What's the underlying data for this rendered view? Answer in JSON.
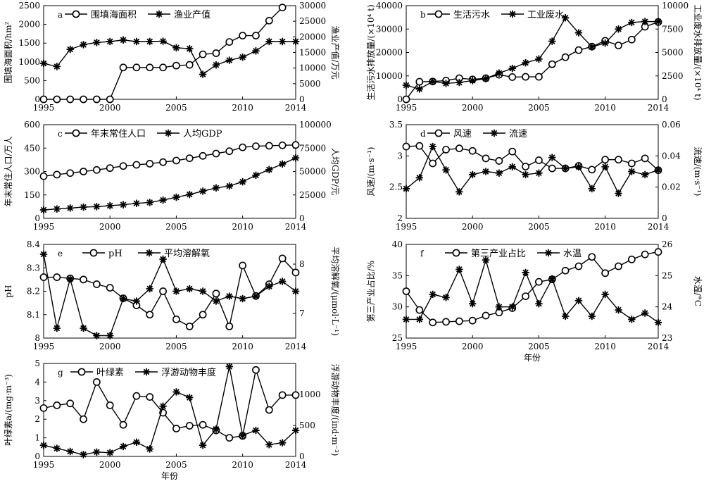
{
  "chart_data": [
    {
      "panel": "a",
      "type": "line",
      "x": [
        1995,
        1996,
        1997,
        1998,
        1999,
        2000,
        2001,
        2002,
        2003,
        2004,
        2005,
        2006,
        2007,
        2008,
        2009,
        2010,
        2011,
        2012,
        2013,
        2014
      ],
      "xlim": [
        1995,
        2014
      ],
      "xticks": [
        1995,
        2000,
        2005,
        2010,
        2014
      ],
      "ylabel": "围填海面积/hm²",
      "ylim": [
        0,
        2500
      ],
      "yticks": [
        0,
        500,
        1000,
        1500,
        2000,
        2500
      ],
      "y2label": "渔业产值/万元",
      "y2lim": [
        0,
        30000
      ],
      "y2ticks": [
        0,
        5000,
        10000,
        15000,
        20000,
        25000,
        30000
      ],
      "legend_position": "top-left",
      "series": [
        {
          "name": "围填海面积",
          "marker": "circle",
          "axis": "left",
          "values": [
            0,
            0,
            0,
            0,
            0,
            0,
            850,
            850,
            850,
            850,
            900,
            920,
            1200,
            1230,
            1530,
            1700,
            1700,
            2100,
            2450,
            null
          ]
        },
        {
          "name": "渔业产值",
          "marker": "star",
          "axis": "right",
          "values": [
            11500,
            10500,
            16000,
            17500,
            18200,
            18500,
            19000,
            18500,
            18500,
            18600,
            16500,
            16200,
            8000,
            11000,
            12500,
            13500,
            15500,
            18500,
            18500,
            18500
          ]
        }
      ]
    },
    {
      "panel": "b",
      "type": "line",
      "x": [
        1995,
        1996,
        1997,
        1998,
        1999,
        2000,
        2001,
        2002,
        2003,
        2004,
        2005,
        2006,
        2007,
        2008,
        2009,
        2010,
        2011,
        2012,
        2013,
        2014
      ],
      "xlim": [
        1995,
        2014
      ],
      "xticks": [
        1995,
        2000,
        2005,
        2010,
        2014
      ],
      "ylabel": "生活污水排放量/(×10⁴ t)",
      "ylim": [
        0,
        40000
      ],
      "yticks": [
        0,
        10000,
        20000,
        30000,
        40000
      ],
      "y2label": "工业废水排放量/(×10⁴ t)",
      "y2lim": [
        0,
        10000
      ],
      "y2ticks": [
        0,
        2500,
        5000,
        7500,
        10000
      ],
      "legend_position": "top-left",
      "series": [
        {
          "name": "生活污水",
          "marker": "circle",
          "axis": "left",
          "values": [
            0,
            7500,
            7600,
            8000,
            9000,
            8500,
            9000,
            10500,
            9500,
            9600,
            9600,
            15000,
            18000,
            21000,
            22500,
            25000,
            23000,
            25500,
            31000,
            33000
          ]
        },
        {
          "name": "工业废水",
          "marker": "star",
          "axis": "right",
          "values": [
            1500,
            1100,
            1900,
            1700,
            1800,
            2000,
            2200,
            2800,
            3300,
            3900,
            4300,
            6200,
            8700,
            7100,
            5600,
            6000,
            7500,
            8200,
            8300,
            8300
          ]
        }
      ]
    },
    {
      "panel": "c",
      "type": "line",
      "x": [
        1995,
        1996,
        1997,
        1998,
        1999,
        2000,
        2001,
        2002,
        2003,
        2004,
        2005,
        2006,
        2007,
        2008,
        2009,
        2010,
        2011,
        2012,
        2013,
        2014
      ],
      "xlim": [
        1995,
        2014
      ],
      "xticks": [
        1995,
        2000,
        2005,
        2010,
        2014
      ],
      "ylabel": "年末常住人口/万人",
      "ylim": [
        0,
        600
      ],
      "yticks": [
        0,
        150,
        300,
        450,
        600
      ],
      "y2label": "人均GDP/元",
      "y2lim": [
        0,
        100000
      ],
      "y2ticks": [
        0,
        25000,
        50000,
        75000,
        100000
      ],
      "legend_position": "top-left",
      "series": [
        {
          "name": "年末常住人口",
          "marker": "circle",
          "axis": "left",
          "values": [
            270,
            280,
            290,
            300,
            310,
            322,
            335,
            343,
            350,
            360,
            370,
            385,
            400,
            415,
            430,
            455,
            462,
            465,
            468,
            470
          ]
        },
        {
          "name": "人均GDP",
          "marker": "star",
          "axis": "right",
          "values": [
            9000,
            10000,
            11000,
            12000,
            12500,
            13500,
            14500,
            16000,
            17000,
            19500,
            22500,
            25500,
            29000,
            32500,
            34500,
            39000,
            46000,
            52000,
            58000,
            64500
          ]
        }
      ]
    },
    {
      "panel": "d",
      "type": "line",
      "x": [
        1995,
        1996,
        1997,
        1998,
        1999,
        2000,
        2001,
        2002,
        2003,
        2004,
        2005,
        2006,
        2007,
        2008,
        2009,
        2010,
        2011,
        2012,
        2013,
        2014
      ],
      "xlim": [
        1995,
        2014
      ],
      "xticks": [
        1995,
        2000,
        2005,
        2010,
        2014
      ],
      "ylabel": "风速/(m·s⁻¹)",
      "ylim": [
        2,
        3.5
      ],
      "yticks": [
        2,
        2.5,
        3,
        3.5
      ],
      "y2label": "流速/(m·s⁻¹)",
      "y2lim": [
        0,
        0.06
      ],
      "y2ticks": [
        0,
        0.02,
        0.04,
        0.06
      ],
      "legend_position": "top-left",
      "series": [
        {
          "name": "风速",
          "marker": "circle",
          "axis": "left",
          "values": [
            3.15,
            3.16,
            2.88,
            3.1,
            3.12,
            3.08,
            2.96,
            2.92,
            3.07,
            2.83,
            2.93,
            2.8,
            2.8,
            2.84,
            2.78,
            2.94,
            2.94,
            2.88,
            2.96,
            2.77
          ]
        },
        {
          "name": "流速",
          "marker": "star",
          "axis": "right",
          "values": [
            0.019,
            0.026,
            0.046,
            0.031,
            0.017,
            0.028,
            0.03,
            0.029,
            0.033,
            0.028,
            0.029,
            0.039,
            0.032,
            0.033,
            0.019,
            0.033,
            0.016,
            0.03,
            0.028,
            0.031
          ]
        }
      ]
    },
    {
      "panel": "e",
      "type": "line",
      "x": [
        1995,
        1996,
        1997,
        1998,
        1999,
        2000,
        2001,
        2002,
        2003,
        2004,
        2005,
        2006,
        2007,
        2008,
        2009,
        2010,
        2011,
        2012,
        2013,
        2014
      ],
      "xlim": [
        1995,
        2014
      ],
      "xticks": [
        1995,
        2000,
        2005,
        2010,
        2014
      ],
      "ylabel": "pH",
      "ylim": [
        8,
        8.4
      ],
      "yticks": [
        8,
        8.1,
        8.2,
        8.3,
        8.4
      ],
      "y2label": "平均溶解氧/(μmol·L⁻¹)",
      "y2lim": [
        6.5,
        8.4
      ],
      "y2ticks": [
        7,
        8
      ],
      "legend_position": "top-center",
      "series": [
        {
          "name": "pH",
          "marker": "circle",
          "axis": "left",
          "values": [
            8.26,
            8.26,
            8.255,
            8.25,
            8.23,
            8.215,
            8.17,
            8.14,
            8.1,
            8.2,
            8.08,
            8.05,
            8.1,
            8.19,
            8.05,
            8.31,
            8.18,
            8.23,
            8.34,
            8.28
          ]
        },
        {
          "name": "平均溶解氧",
          "marker": "star",
          "axis": "right",
          "values": [
            8.2,
            6.7,
            7.7,
            6.7,
            6.55,
            6.55,
            7.3,
            7.25,
            7.5,
            8.1,
            7.45,
            7.5,
            7.45,
            7.25,
            7.35,
            7.3,
            7.35,
            7.55,
            7.65,
            7.45
          ]
        }
      ]
    },
    {
      "panel": "f",
      "type": "line",
      "x": [
        1995,
        1996,
        1997,
        1998,
        1999,
        2000,
        2001,
        2002,
        2003,
        2004,
        2005,
        2006,
        2007,
        2008,
        2009,
        2010,
        2011,
        2012,
        2013,
        2014
      ],
      "xlim": [
        1995,
        2014
      ],
      "xticks": [
        1995,
        2000,
        2005,
        2010,
        2014
      ],
      "xlabel": "年份",
      "ylabel": "第三产业占比/%",
      "ylim": [
        25,
        40
      ],
      "yticks": [
        25,
        30,
        35,
        40
      ],
      "y2label": "水温/°C",
      "y2lim": [
        23,
        26
      ],
      "y2ticks": [
        23,
        24,
        25,
        26
      ],
      "legend_position": "top-center",
      "series": [
        {
          "name": "第三产业占比",
          "marker": "circle",
          "axis": "left",
          "values": [
            32.5,
            29.5,
            27.5,
            27.6,
            27.7,
            27.8,
            28.6,
            29.1,
            29.8,
            31.7,
            34,
            34.4,
            35.8,
            36.5,
            38,
            35.4,
            36.5,
            37.6,
            38.4,
            38.8
          ]
        },
        {
          "name": "水温",
          "marker": "star",
          "axis": "right",
          "values": [
            23.6,
            23.6,
            24.4,
            24.3,
            25.2,
            24.1,
            25.5,
            24,
            24,
            25.1,
            24.1,
            24.9,
            23.7,
            24.2,
            23.7,
            24.4,
            23.9,
            23.6,
            23.8,
            23.5
          ]
        }
      ]
    },
    {
      "panel": "g",
      "type": "line",
      "x": [
        1995,
        1996,
        1997,
        1998,
        1999,
        2000,
        2001,
        2002,
        2003,
        2004,
        2005,
        2006,
        2007,
        2008,
        2009,
        2010,
        2011,
        2012,
        2013,
        2014
      ],
      "xlim": [
        1995,
        2014
      ],
      "xticks": [
        1995,
        2000,
        2005,
        2010,
        2014
      ],
      "xlabel": "年份",
      "ylabel": "叶绿素a/(mg·m⁻³)",
      "ylim": [
        0,
        5
      ],
      "yticks": [
        0,
        1,
        2,
        3,
        4,
        5
      ],
      "y2label": "浮游动物丰度/(ind·m⁻³)",
      "y2lim": [
        0,
        1500
      ],
      "y2ticks": [
        0,
        500,
        1000
      ],
      "legend_position": "top-center",
      "series": [
        {
          "name": "叶绿素",
          "marker": "circle",
          "axis": "left",
          "values": [
            2.6,
            2.75,
            2.85,
            2,
            4,
            2.75,
            1.7,
            3.25,
            3.2,
            2.35,
            1.5,
            1.65,
            1.7,
            1.4,
            1,
            1.1,
            4.65,
            2.5,
            3.3,
            3.3
          ]
        },
        {
          "name": "浮游动物丰度",
          "marker": "star",
          "axis": "right",
          "values": [
            180,
            130,
            80,
            30,
            70,
            60,
            160,
            230,
            120,
            810,
            1040,
            950,
            180,
            440,
            1450,
            340,
            420,
            190,
            220,
            420
          ]
        }
      ]
    }
  ]
}
